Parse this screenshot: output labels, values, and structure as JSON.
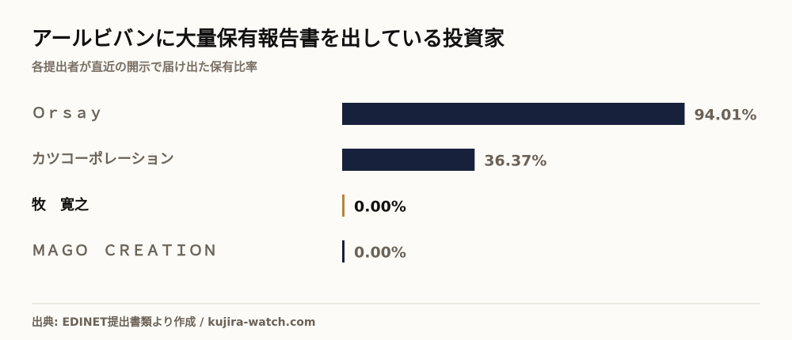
{
  "chart_data": {
    "type": "barh",
    "title": "アールビバンに大量保有報告書を出している投資家",
    "subtitle": "各提出者が直近の開示で届け出た保有比率",
    "categories": [
      "Ｏｒｓａｙ",
      "カツコーポレーション",
      "牧　寛之",
      "ＭＡＧＯ　ＣＲＥＡＴＩＯＮ"
    ],
    "values": [
      94.01,
      36.37,
      0.0,
      0.0
    ],
    "value_labels": [
      "94.01%",
      "36.37%",
      "0.00%",
      "0.00%"
    ],
    "colors": [
      "#17213b",
      "#17213b",
      "#b5843d",
      "#17213b"
    ],
    "highlight_index": 2,
    "xlim": [
      0,
      100
    ],
    "source": "出典: EDINET提出書類より作成 / kujira-watch.com"
  }
}
